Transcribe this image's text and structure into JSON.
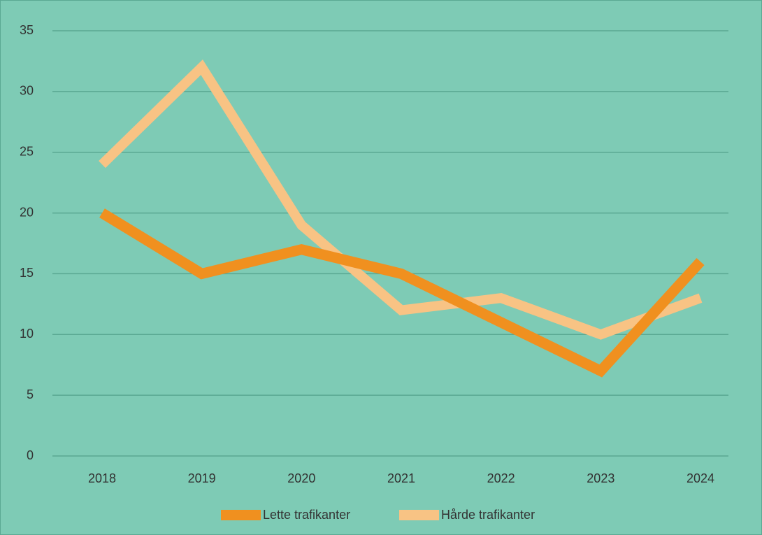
{
  "chart_data": {
    "type": "line",
    "categories": [
      "2018",
      "2019",
      "2020",
      "2021",
      "2022",
      "2023",
      "2024"
    ],
    "series": [
      {
        "name": "Lette trafikanter",
        "color": "#f0901f",
        "values": [
          20,
          15,
          17,
          15,
          11,
          7,
          16
        ]
      },
      {
        "name": "Hårde trafikanter",
        "color": "#f8c384",
        "values": [
          24,
          32,
          19,
          12,
          13,
          10,
          13
        ]
      }
    ],
    "ylim": [
      0,
      35
    ],
    "yticks": [
      0,
      5,
      10,
      15,
      20,
      25,
      30,
      35
    ],
    "grid": true,
    "legend": "bottom"
  }
}
